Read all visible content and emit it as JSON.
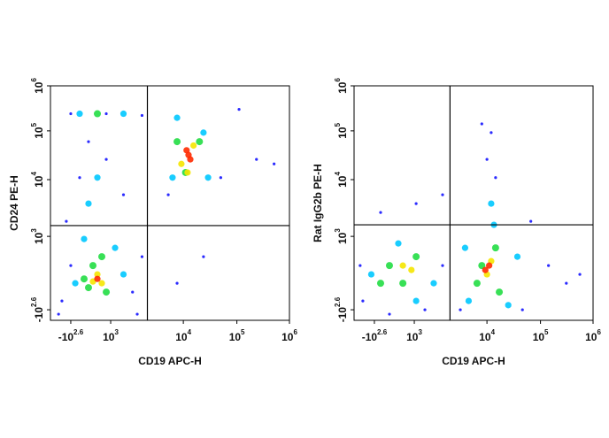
{
  "chart_data": [
    {
      "type": "scatter",
      "x_label": "CD19 APC-H",
      "y_label": "CD24 PE-H",
      "xlim": [
        -1000,
        1000000
      ],
      "ylim": [
        -1000,
        1000000
      ],
      "xticks": [
        {
          "value": -398,
          "label": "-10",
          "exponent": "2.6"
        },
        {
          "value": 1000,
          "label": "10",
          "exponent": "3"
        },
        {
          "value": 10000,
          "label": "10",
          "exponent": "4"
        },
        {
          "value": 100000,
          "label": "10",
          "exponent": "5"
        },
        {
          "value": 1000000,
          "label": "10",
          "exponent": "6"
        }
      ],
      "yticks": [
        {
          "value": -398,
          "label": "-10",
          "exponent": "2.6"
        },
        {
          "value": 1000,
          "label": "10",
          "exponent": "3"
        },
        {
          "value": 10000,
          "label": "10",
          "exponent": "4"
        },
        {
          "value": 100000,
          "label": "10",
          "exponent": "5"
        },
        {
          "value": 1000000,
          "label": "10",
          "exponent": "6"
        }
      ],
      "quadrant": {
        "x": 3200,
        "y": 1550
      },
      "series": [
        {
          "color": "#1414ff",
          "x": [
            -660,
            -398,
            2000,
            2700,
            -530,
            -87,
            845,
            1500,
            223,
            -398,
            845,
            2700,
            6200,
            50000,
            236000,
            510000,
            23800,
            8200,
            110000,
            -760,
            2320
          ],
          "y": [
            -230,
            444,
            -61,
            613,
            1840,
            11000,
            26000,
            5400,
            60000,
            240000,
            240000,
            220000,
            5400,
            11000,
            26000,
            21000,
            613,
            107,
            300000,
            -649,
            -649
          ]
        },
        {
          "color": "#00c8ff",
          "x": [
            -240,
            1500,
            68,
            1150,
            223,
            534,
            -87,
            1500,
            7100,
            23800,
            8200,
            29000
          ],
          "y": [
            107,
            276,
            950,
            781,
            3780,
            11000,
            240000,
            240000,
            11000,
            92000,
            195000,
            11000
          ]
        },
        {
          "color": "#22dd44",
          "x": [
            68,
            845,
            379,
            689,
            223,
            8200,
            20000,
            11000,
            534
          ],
          "y": [
            190,
            -61,
            444,
            613,
            23,
            60000,
            60000,
            14000,
            240000
          ]
        },
        {
          "color": "#f5e600",
          "x": [
            534,
            379,
            689,
            9400,
            15500,
            12000
          ],
          "y": [
            276,
            140,
            107,
            21000,
            50000,
            14000
          ]
        },
        {
          "color": "#ff2a00",
          "x": [
            534,
            12500,
            13500,
            11500
          ],
          "y": [
            190,
            32000,
            26000,
            40000
          ]
        }
      ]
    },
    {
      "type": "scatter",
      "x_label": "CD19 APC-H",
      "y_label": "Rat IgG2b PE-H",
      "xlim": [
        -1000,
        1000000
      ],
      "ylim": [
        -1000,
        1000000
      ],
      "xticks": [
        {
          "value": -398,
          "label": "-10",
          "exponent": "2.6"
        },
        {
          "value": 1000,
          "label": "10",
          "exponent": "3"
        },
        {
          "value": 10000,
          "label": "10",
          "exponent": "4"
        },
        {
          "value": 100000,
          "label": "10",
          "exponent": "5"
        },
        {
          "value": 1000000,
          "label": "10",
          "exponent": "6"
        }
      ],
      "yticks": [
        {
          "value": -398,
          "label": "-10",
          "exponent": "2.6"
        },
        {
          "value": 1000,
          "label": "10",
          "exponent": "3"
        },
        {
          "value": 10000,
          "label": "10",
          "exponent": "4"
        },
        {
          "value": 100000,
          "label": "10",
          "exponent": "5"
        },
        {
          "value": 1000000,
          "label": "10",
          "exponent": "6"
        }
      ],
      "quadrant": {
        "x": 3100,
        "y": 1600
      },
      "series": [
        {
          "color": "#1414ff",
          "x": [
            -740,
            2450,
            1400,
            -180,
            1060,
            2450,
            12000,
            10000,
            14500,
            8500,
            142000,
            310000,
            66000,
            4300,
            46000,
            560000,
            -820,
            130
          ],
          "y": [
            -230,
            444,
            -398,
            2640,
            3780,
            5400,
            92000,
            26000,
            11000,
            143000,
            444,
            107,
            1840,
            -398,
            -398,
            276,
            444,
            -649
          ]
        },
        {
          "color": "#00c8ff",
          "x": [
            -490,
            1850,
            440,
            1060,
            5000,
            37000,
            5600,
            25000,
            12000,
            13500
          ],
          "y": [
            276,
            107,
            865,
            -230,
            781,
            613,
            -230,
            -310,
            3780,
            1600
          ]
        },
        {
          "color": "#22dd44",
          "x": [
            130,
            1060,
            600,
            -180,
            7300,
            14500,
            17000,
            8500
          ],
          "y": [
            444,
            613,
            107,
            107,
            107,
            781,
            -61,
            444
          ]
        },
        {
          "color": "#f5e600",
          "x": [
            600,
            900,
            10000,
            12000
          ],
          "y": [
            444,
            360,
            276,
            528
          ]
        },
        {
          "color": "#ff2a00",
          "x": [
            9500,
            11000
          ],
          "y": [
            360,
            444
          ]
        }
      ]
    }
  ]
}
